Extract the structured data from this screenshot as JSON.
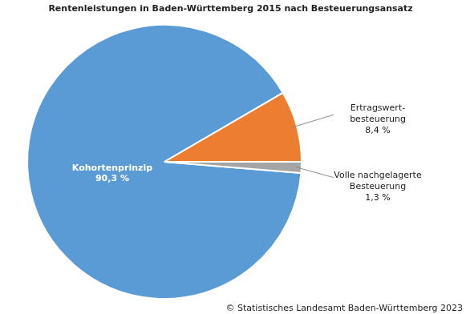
{
  "chart_data": {
    "type": "pie",
    "title": "Rentenleistungen in Baden-Württemberg 2015 nach Besteuerungsansatz",
    "categories": [
      "Kohortenprinzip",
      "Ertragswert-\nbesteuerung",
      "Volle nachgelagerte\nBesteuerung"
    ],
    "values": [
      90.3,
      8.4,
      1.3
    ],
    "value_labels": [
      "90,3 %",
      "8,4 %",
      "1,3 %"
    ],
    "colors": [
      "#5b9bd5",
      "#ed7d31",
      "#a5a5a5"
    ],
    "data_labels": true,
    "source": "© Statistisches Landesamt Baden-Württemberg 2023"
  }
}
